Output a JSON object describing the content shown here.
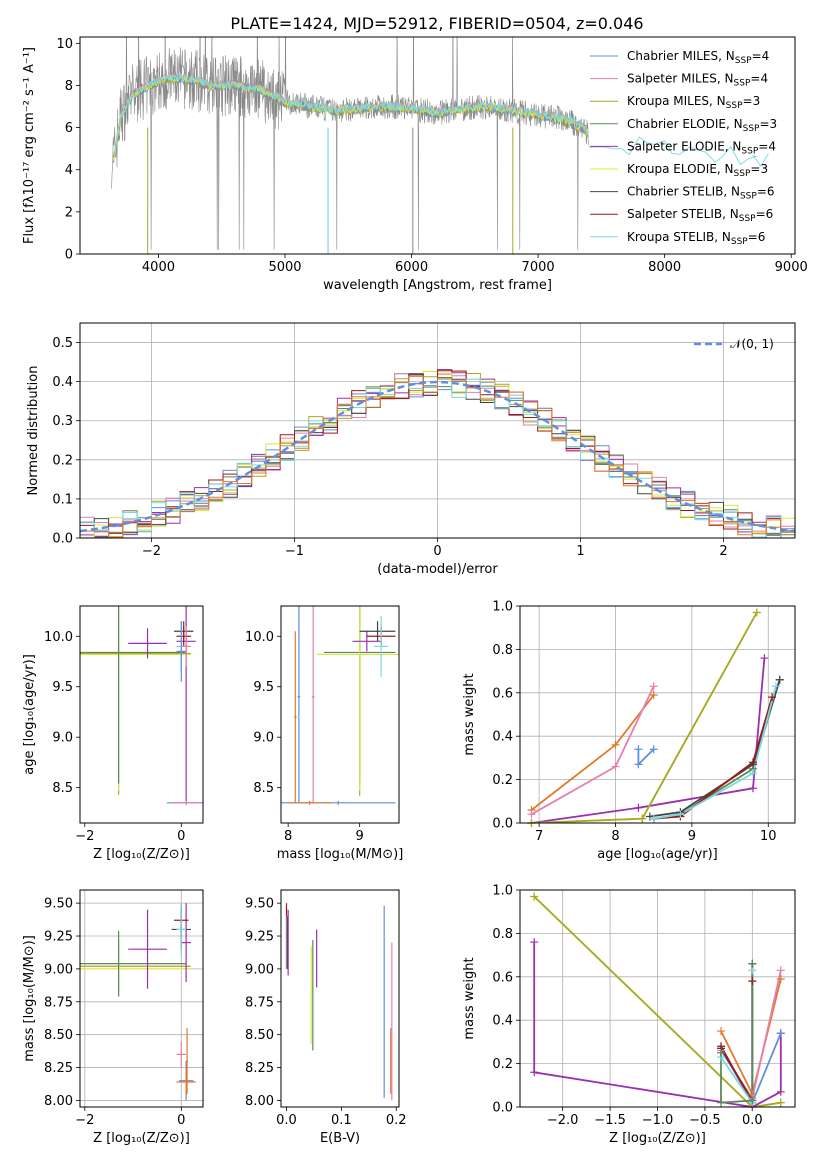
{
  "figure": {
    "title": "PLATE=1424, MJD=52912, FIBERID=0504, z=0.046"
  },
  "colors": {
    "Chabrier MILES": "#5f8fde",
    "Salpeter MILES": "#e67fae",
    "Kroupa MILES": "#a8a828",
    "Chabrier ELODIE": "#5a8a5a",
    "Salpeter ELODIE": "#9a2fb0",
    "Kroupa ELODIE": "#d8e840",
    "Chabrier STELIB": "#444444",
    "Salpeter STELIB": "#a01818",
    "Kroupa STELIB": "#78d8e0",
    "spectrum": "#888888",
    "orange": "#e07a2a",
    "normal": "#5f8fde",
    "grid": "#b0b0b0"
  },
  "chart_data": [
    {
      "id": "spectrum",
      "type": "line",
      "xlabel": "wavelength [Angstrom, rest frame]",
      "ylabel": "Flux [fλ10⁻¹⁷ erg cm⁻² s⁻¹ A⁻¹]",
      "xlim": [
        3380,
        9030
      ],
      "ylim": [
        0,
        10.3
      ],
      "xticks": [
        "4000",
        "5000",
        "6000",
        "7000",
        "8000",
        "9000"
      ],
      "yticks": [
        "0",
        "2",
        "4",
        "6",
        "8",
        "10"
      ],
      "grid": false,
      "legend_position": "top-right",
      "legend": [
        {
          "label": "Chabrier MILES, N",
          "sub": "SSP",
          "suffix": "=4"
        },
        {
          "label": "Salpeter MILES, N",
          "sub": "SSP",
          "suffix": "=4"
        },
        {
          "label": "Kroupa MILES, N",
          "sub": "SSP",
          "suffix": "=3"
        },
        {
          "label": "Chabrier ELODIE, N",
          "sub": "SSP",
          "suffix": "=3"
        },
        {
          "label": "Salpeter ELODIE, N",
          "sub": "SSP",
          "suffix": "=4"
        },
        {
          "label": "Kroupa ELODIE, N",
          "sub": "SSP",
          "suffix": "=3"
        },
        {
          "label": "Chabrier STELIB, N",
          "sub": "SSP",
          "suffix": "=6"
        },
        {
          "label": "Salpeter STELIB, N",
          "sub": "SSP",
          "suffix": "=6"
        },
        {
          "label": "Kroupa STELIB, N",
          "sub": "SSP",
          "suffix": "=6"
        }
      ],
      "envelope": {
        "x": [
          3650,
          3700,
          3800,
          3900,
          4000,
          4100,
          4200,
          4300,
          4400,
          4500,
          4600,
          4700,
          4800,
          4900,
          5000,
          5200,
          5400,
          5600,
          5800,
          6000,
          6200,
          6400,
          6600,
          6800,
          7000,
          7200,
          7350,
          7400
        ],
        "y": [
          4.6,
          6.5,
          7.6,
          7.9,
          8.2,
          8.4,
          8.3,
          8.2,
          8.0,
          8.0,
          8.0,
          7.9,
          7.8,
          7.5,
          7.2,
          7.0,
          6.8,
          6.9,
          7.0,
          6.9,
          6.7,
          6.9,
          7.0,
          6.8,
          6.6,
          6.4,
          6.0,
          5.7
        ]
      },
      "red_extension": {
        "x": [
          7400,
          7600,
          7800,
          8000,
          8200,
          8400,
          8600,
          8700
        ],
        "y": [
          5.4,
          5.0,
          5.2,
          5.0,
          4.8,
          4.7,
          4.6,
          4.4
        ]
      }
    },
    {
      "id": "residual-histogram",
      "type": "line",
      "xlabel": "(data-model)/error",
      "ylabel": "Normed distribution",
      "xlim": [
        -2.5,
        2.5
      ],
      "ylim": [
        0,
        0.55
      ],
      "xticks": [
        "−2",
        "−1",
        "0",
        "1",
        "2"
      ],
      "yticks": [
        "0.0",
        "0.1",
        "0.2",
        "0.3",
        "0.4",
        "0.5"
      ],
      "grid": true,
      "legend_position": "top-right",
      "legend_label": "𝒩(0, 1)",
      "bin_width": 0.1
    },
    {
      "id": "age-vs-Z",
      "type": "scatter",
      "xlabel": "Z [log₁₀(Z/Z⊙)]",
      "ylabel": "age  [log₁₀(age/yr)]",
      "xlim": [
        -2.1,
        0.45
      ],
      "ylim": [
        8.15,
        10.3
      ],
      "xticks": [
        "−2",
        "0"
      ],
      "yticks": [
        "8.5",
        "9.0",
        "9.5",
        "10.0"
      ],
      "grid": false,
      "points": [
        {
          "s": "Kroupa MILES",
          "x": -1.3,
          "y": 9.83,
          "xe": 1.5,
          "ye": 1.4
        },
        {
          "s": "Kroupa ELODIE",
          "x": -1.3,
          "y": 9.82,
          "xe": 1.5,
          "ye": 1.35
        },
        {
          "s": "Chabrier ELODIE",
          "x": -1.3,
          "y": 9.84,
          "xe": 1.4,
          "ye": 1.3
        },
        {
          "s": "Salpeter ELODIE",
          "x": -0.7,
          "y": 9.93,
          "xe": 0.4,
          "ye": 0.15
        },
        {
          "s": "Salpeter ELODIE",
          "x": 0.1,
          "y": 9.95,
          "xe": 0.2,
          "ye": 1.6
        },
        {
          "s": "Chabrier STELIB",
          "x": 0.05,
          "y": 10.05,
          "xe": 0.2,
          "ye": 0.1
        },
        {
          "s": "Salpeter STELIB",
          "x": 0.05,
          "y": 10.0,
          "xe": 0.15,
          "ye": 0.1
        },
        {
          "s": "Kroupa STELIB",
          "x": 0.0,
          "y": 9.9,
          "xe": 0.1,
          "ye": 0.25
        },
        {
          "s": "Chabrier MILES",
          "x": 0.0,
          "y": 9.85,
          "xe": 0.1,
          "ye": 0.3
        },
        {
          "s": "Salpeter MILES",
          "x": 0.1,
          "y": 9.9,
          "xe": 0.1,
          "ye": 0.2
        },
        {
          "s": "Chabrier MILES",
          "x": 0.1,
          "y": 8.35,
          "xe": 0.4,
          "ye": 0.02
        },
        {
          "s": "Salpeter MILES",
          "x": 0.1,
          "y": 8.35,
          "xe": 0.3,
          "ye": 0.02
        }
      ]
    },
    {
      "id": "age-vs-mass",
      "type": "scatter",
      "xlabel": "mass [log₁₀(M/M⊙)]",
      "xlim": [
        7.9,
        9.55
      ],
      "ylim": [
        8.15,
        10.3
      ],
      "xticks": [
        "8",
        "9"
      ],
      "yticks": [
        "8.5",
        "9.0",
        "9.5",
        "10.0"
      ],
      "grid": false,
      "points": [
        {
          "s": "Kroupa MILES",
          "x": 9.0,
          "y": 9.82,
          "xe": 0.6,
          "ye": 1.4
        },
        {
          "s": "Chabrier ELODIE",
          "x": 9.0,
          "y": 9.84,
          "xe": 0.5,
          "ye": 1.3
        },
        {
          "s": "Kroupa ELODIE",
          "x": 9.0,
          "y": 9.82,
          "xe": 0.6,
          "ye": 1.35
        },
        {
          "s": "Salpeter ELODIE",
          "x": 9.1,
          "y": 9.95,
          "xe": 0.2,
          "ye": 0.1
        },
        {
          "s": "Chabrier STELIB",
          "x": 9.25,
          "y": 10.05,
          "xe": 0.25,
          "ye": 0.1
        },
        {
          "s": "Salpeter STELIB",
          "x": 9.3,
          "y": 10.0,
          "xe": 0.2,
          "ye": 0.1
        },
        {
          "s": "Kroupa STELIB",
          "x": 9.3,
          "y": 9.9,
          "xe": 0.1,
          "ye": 0.3
        },
        {
          "s": "Chabrier MILES",
          "x": 8.7,
          "y": 8.35,
          "xe": 0.8,
          "ye": 0.02
        },
        {
          "s": "Chabrier MILES",
          "x": 8.15,
          "y": 9.4,
          "xe": 0.02,
          "ye": 1.05
        },
        {
          "s": "Salpeter MILES",
          "x": 8.35,
          "y": 9.4,
          "xe": 0.02,
          "ye": 1.05
        },
        {
          "s": "orange",
          "x": 8.1,
          "y": 9.2,
          "xe": 0.02,
          "ye": 0.85
        },
        {
          "s": "orange",
          "x": 8.3,
          "y": 8.35,
          "xe": 0.3,
          "ye": 0.02
        }
      ]
    },
    {
      "id": "mass-weight-vs-age",
      "type": "line",
      "xlabel": "age  [log₁₀(age/yr)]",
      "ylabel": "mass weight",
      "xlim": [
        6.75,
        10.35
      ],
      "ylim": [
        0,
        1
      ],
      "xticks": [
        "7",
        "8",
        "9",
        "10"
      ],
      "yticks": [
        "0.0",
        "0.2",
        "0.4",
        "0.6",
        "0.8",
        "1.0"
      ],
      "grid": true,
      "series": [
        {
          "s": "orange",
          "x": [
            6.9,
            8.0,
            8.5
          ],
          "y": [
            0.06,
            0.36,
            0.59
          ]
        },
        {
          "s": "Salpeter MILES",
          "x": [
            6.9,
            8.0,
            8.5
          ],
          "y": [
            0.04,
            0.26,
            0.63
          ]
        },
        {
          "s": "Chabrier MILES",
          "x": [
            8.3,
            8.3,
            8.5
          ],
          "y": [
            0.34,
            0.27,
            0.34
          ]
        },
        {
          "s": "Salpeter ELODIE",
          "x": [
            6.9,
            8.3,
            9.8,
            9.95
          ],
          "y": [
            0.0,
            0.07,
            0.16,
            0.76
          ]
        },
        {
          "s": "Kroupa ELODIE",
          "x": [
            6.9,
            8.35,
            9.85
          ],
          "y": [
            0.0,
            0.02,
            0.97
          ]
        },
        {
          "s": "Kroupa MILES",
          "x": [
            6.9,
            8.35,
            9.85
          ],
          "y": [
            0.0,
            0.02,
            0.97
          ]
        },
        {
          "s": "Chabrier ELODIE",
          "x": [
            8.5,
            8.85,
            9.8,
            10.15
          ],
          "y": [
            0.02,
            0.04,
            0.25,
            0.66
          ]
        },
        {
          "s": "Chabrier STELIB",
          "x": [
            8.45,
            8.85,
            9.8,
            10.15
          ],
          "y": [
            0.03,
            0.05,
            0.27,
            0.66
          ]
        },
        {
          "s": "Salpeter STELIB",
          "x": [
            8.5,
            8.85,
            9.8,
            10.05
          ],
          "y": [
            0.02,
            0.03,
            0.28,
            0.58
          ]
        },
        {
          "s": "Kroupa STELIB",
          "x": [
            8.5,
            8.85,
            9.8,
            10.1
          ],
          "y": [
            0.02,
            0.04,
            0.23,
            0.63
          ]
        }
      ]
    },
    {
      "id": "mass-vs-Z",
      "type": "scatter",
      "xlabel": "Z [log₁₀(Z/Z⊙)]",
      "ylabel": "mass [log₁₀(M/M⊙)]",
      "xlim": [
        -2.1,
        0.45
      ],
      "ylim": [
        7.95,
        9.6
      ],
      "xticks": [
        "−2",
        "0"
      ],
      "yticks": [
        "8.00",
        "8.25",
        "8.50",
        "8.75",
        "9.00",
        "9.25",
        "9.50"
      ],
      "grid": true,
      "points": [
        {
          "s": "Kroupa MILES",
          "x": -1.3,
          "y": 9.02,
          "xe": 1.5,
          "ye": 0.2
        },
        {
          "s": "Kroupa ELODIE",
          "x": -1.3,
          "y": 9.0,
          "xe": 1.5,
          "ye": 0.2
        },
        {
          "s": "Chabrier ELODIE",
          "x": -1.3,
          "y": 9.04,
          "xe": 1.4,
          "ye": 0.25
        },
        {
          "s": "Salpeter ELODIE",
          "x": -0.7,
          "y": 9.15,
          "xe": 0.4,
          "ye": 0.3
        },
        {
          "s": "Salpeter ELODIE",
          "x": 0.1,
          "y": 9.2,
          "xe": 0.1,
          "ye": 0.3
        },
        {
          "s": "Chabrier STELIB",
          "x": 0.0,
          "y": 9.3,
          "xe": 0.2,
          "ye": 0.15
        },
        {
          "s": "Salpeter STELIB",
          "x": 0.0,
          "y": 9.37,
          "xe": 0.15,
          "ye": 0.12
        },
        {
          "s": "Kroupa STELIB",
          "x": 0.0,
          "y": 9.3,
          "xe": 0.1,
          "ye": 0.2
        },
        {
          "s": "Chabrier MILES",
          "x": 0.1,
          "y": 8.15,
          "xe": 0.15,
          "ye": 0.15
        },
        {
          "s": "Salpeter MILES",
          "x": 0.0,
          "y": 8.35,
          "xe": 0.1,
          "ye": 0.1
        },
        {
          "s": "orange",
          "x": 0.1,
          "y": 8.14,
          "xe": 0.2,
          "ye": 0.1
        },
        {
          "s": "orange",
          "x": 0.12,
          "y": 8.3,
          "xe": 0.02,
          "ye": 0.25
        }
      ]
    },
    {
      "id": "mass-vs-EBV",
      "type": "scatter",
      "xlabel": "E(B-V)",
      "xlim": [
        -0.01,
        0.205
      ],
      "ylim": [
        7.95,
        9.6
      ],
      "xticks": [
        "0.0",
        "0.1",
        "0.2"
      ],
      "yticks": [
        "8.00",
        "8.25",
        "8.50",
        "8.75",
        "9.00",
        "9.25",
        "9.50"
      ],
      "grid": false,
      "points": [
        {
          "s": "Salpeter STELIB",
          "x": 0.0,
          "y": 9.25,
          "xe": 0.0,
          "ye": 0.25
        },
        {
          "s": "Kroupa STELIB",
          "x": 0.001,
          "y": 9.2,
          "xe": 0.0,
          "ye": 0.2
        },
        {
          "s": "Chabrier STELIB",
          "x": 0.002,
          "y": 9.2,
          "xe": 0.0,
          "ye": 0.2
        },
        {
          "s": "Kroupa ELODIE",
          "x": 0.045,
          "y": 8.8,
          "xe": 0.0,
          "ye": 0.37
        },
        {
          "s": "Chabrier ELODIE",
          "x": 0.048,
          "y": 8.8,
          "xe": 0.0,
          "ye": 0.42
        },
        {
          "s": "Salpeter ELODIE",
          "x": 0.055,
          "y": 9.08,
          "xe": 0.0,
          "ye": 0.22
        },
        {
          "s": "Salpeter ELODIE",
          "x": 0.003,
          "y": 9.2,
          "xe": 0.0,
          "ye": 0.25
        },
        {
          "s": "Chabrier MILES",
          "x": 0.178,
          "y": 8.75,
          "xe": 0.0,
          "ye": 0.73
        },
        {
          "s": "orange",
          "x": 0.19,
          "y": 8.3,
          "xe": 0.0,
          "ye": 0.25
        },
        {
          "s": "Salpeter MILES",
          "x": 0.192,
          "y": 8.6,
          "xe": 0.0,
          "ye": 0.6
        }
      ]
    },
    {
      "id": "mass-weight-vs-Z",
      "type": "line",
      "xlabel": "Z [log₁₀(Z/Z⊙)]",
      "ylabel": "mass weight",
      "xlim": [
        -2.45,
        0.45
      ],
      "ylim": [
        0,
        1
      ],
      "xticks": [
        "−2.0",
        "−1.5",
        "−1.0",
        "−0.5",
        "0.0"
      ],
      "yticks": [
        "0.0",
        "0.2",
        "0.4",
        "0.6",
        "0.8",
        "1.0"
      ],
      "grid": true,
      "series": [
        {
          "s": "Kroupa ELODIE",
          "x": [
            -2.3,
            0.0,
            0.3
          ],
          "y": [
            0.97,
            0.0,
            0.02
          ]
        },
        {
          "s": "Kroupa MILES",
          "x": [
            -2.3,
            0.0,
            0.3
          ],
          "y": [
            0.97,
            0.0,
            0.02
          ]
        },
        {
          "s": "Salpeter ELODIE",
          "x": [
            -2.3,
            -2.3,
            0.0,
            0.3,
            0.3
          ],
          "y": [
            0.76,
            0.16,
            0.0,
            0.07,
            0.34
          ]
        },
        {
          "s": "orange",
          "x": [
            -0.33,
            0.0,
            0.3
          ],
          "y": [
            0.35,
            0.06,
            0.59
          ]
        },
        {
          "s": "Salpeter MILES",
          "x": [
            -0.33,
            0.0,
            0.3
          ],
          "y": [
            0.26,
            0.04,
            0.63
          ]
        },
        {
          "s": "Chabrier MILES",
          "x": [
            -0.33,
            0.0,
            0.3
          ],
          "y": [
            0.27,
            0.02,
            0.34
          ]
        },
        {
          "s": "Chabrier STELIB",
          "x": [
            -0.33,
            0.0,
            0.0
          ],
          "y": [
            0.27,
            0.03,
            0.66
          ]
        },
        {
          "s": "Salpeter STELIB",
          "x": [
            -0.33,
            0.0,
            0.0
          ],
          "y": [
            0.28,
            0.02,
            0.58
          ]
        },
        {
          "s": "Kroupa STELIB",
          "x": [
            -0.33,
            0.0,
            0.0
          ],
          "y": [
            0.23,
            0.02,
            0.63
          ]
        },
        {
          "s": "Chabrier ELODIE",
          "x": [
            -0.33,
            -0.33,
            0.0,
            0.0
          ],
          "y": [
            0.25,
            0.02,
            0.03,
            0.66
          ]
        }
      ]
    }
  ]
}
